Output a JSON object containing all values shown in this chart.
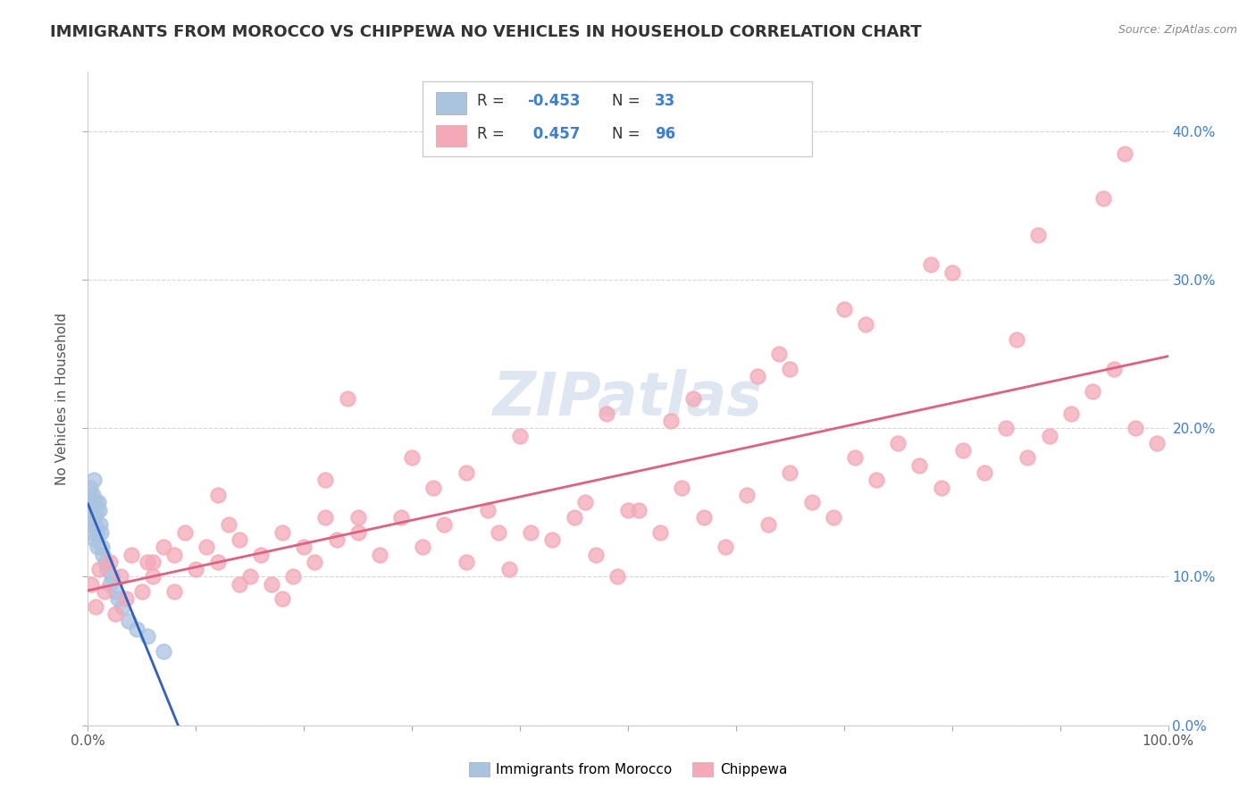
{
  "title": "IMMIGRANTS FROM MOROCCO VS CHIPPEWA NO VEHICLES IN HOUSEHOLD CORRELATION CHART",
  "source_text": "Source: ZipAtlas.com",
  "ylabel": "No Vehicles in Household",
  "xlim": [
    0.0,
    100.0
  ],
  "ylim": [
    0.0,
    44.0
  ],
  "series1_color": "#aac4e0",
  "series2_color": "#f4a8b8",
  "line1_color": "#3060c0",
  "line2_color": "#e06080",
  "watermark": "ZIPatlas",
  "background_color": "#ffffff",
  "title_color": "#333333",
  "title_fontsize": 13,
  "legend_color": "#3a7fd5",
  "legend_label_color": "#333333",
  "r1_val": "-0.453",
  "n1_val": "33",
  "r2_val": " 0.457",
  "n2_val": "96",
  "ytick_color": "#3a7fd5",
  "series1_x": [
    0.15,
    0.2,
    0.25,
    0.3,
    0.35,
    0.4,
    0.45,
    0.5,
    0.55,
    0.6,
    0.65,
    0.7,
    0.75,
    0.8,
    0.85,
    0.9,
    0.95,
    1.0,
    1.1,
    1.2,
    1.3,
    1.4,
    1.6,
    1.8,
    2.0,
    2.2,
    2.5,
    2.8,
    3.2,
    3.8,
    4.5,
    5.5,
    7.0
  ],
  "series1_y": [
    14.5,
    15.5,
    16.0,
    13.5,
    15.0,
    14.0,
    15.5,
    13.0,
    16.5,
    12.5,
    14.0,
    13.5,
    15.0,
    14.5,
    13.0,
    12.0,
    15.0,
    14.5,
    13.5,
    13.0,
    12.0,
    11.5,
    11.0,
    10.5,
    9.5,
    10.0,
    9.0,
    8.5,
    8.0,
    7.0,
    6.5,
    6.0,
    5.0
  ],
  "series2_x": [
    0.3,
    0.7,
    1.0,
    1.5,
    2.0,
    2.5,
    3.0,
    3.5,
    4.0,
    5.0,
    5.5,
    6.0,
    7.0,
    8.0,
    9.0,
    10.0,
    11.0,
    12.0,
    13.0,
    14.0,
    15.0,
    16.0,
    17.0,
    18.0,
    19.0,
    20.0,
    21.0,
    22.0,
    23.0,
    25.0,
    27.0,
    29.0,
    31.0,
    33.0,
    35.0,
    37.0,
    39.0,
    41.0,
    43.0,
    45.0,
    47.0,
    49.0,
    51.0,
    53.0,
    55.0,
    57.0,
    59.0,
    61.0,
    63.0,
    65.0,
    67.0,
    69.0,
    71.0,
    73.0,
    75.0,
    77.0,
    79.0,
    81.0,
    83.0,
    85.0,
    87.0,
    89.0,
    91.0,
    93.0,
    95.0,
    97.0,
    99.0,
    8.0,
    12.0,
    18.0,
    25.0,
    32.0,
    40.0,
    48.0,
    56.0,
    64.0,
    72.0,
    80.0,
    88.0,
    96.0,
    6.0,
    14.0,
    22.0,
    30.0,
    38.0,
    46.0,
    54.0,
    62.0,
    70.0,
    78.0,
    86.0,
    94.0,
    24.0,
    35.0,
    50.0,
    65.0
  ],
  "series2_y": [
    9.5,
    8.0,
    10.5,
    9.0,
    11.0,
    7.5,
    10.0,
    8.5,
    11.5,
    9.0,
    11.0,
    10.0,
    12.0,
    11.5,
    13.0,
    10.5,
    12.0,
    11.0,
    13.5,
    12.5,
    10.0,
    11.5,
    9.5,
    13.0,
    10.0,
    12.0,
    11.0,
    14.0,
    12.5,
    13.0,
    11.5,
    14.0,
    12.0,
    13.5,
    11.0,
    14.5,
    10.5,
    13.0,
    12.5,
    14.0,
    11.5,
    10.0,
    14.5,
    13.0,
    16.0,
    14.0,
    12.0,
    15.5,
    13.5,
    17.0,
    15.0,
    14.0,
    18.0,
    16.5,
    19.0,
    17.5,
    16.0,
    18.5,
    17.0,
    20.0,
    18.0,
    19.5,
    21.0,
    22.5,
    24.0,
    20.0,
    19.0,
    9.0,
    15.5,
    8.5,
    14.0,
    16.0,
    19.5,
    21.0,
    22.0,
    25.0,
    27.0,
    30.5,
    33.0,
    38.5,
    11.0,
    9.5,
    16.5,
    18.0,
    13.0,
    15.0,
    20.5,
    23.5,
    28.0,
    31.0,
    26.0,
    35.5,
    22.0,
    17.0,
    14.5,
    24.0
  ]
}
